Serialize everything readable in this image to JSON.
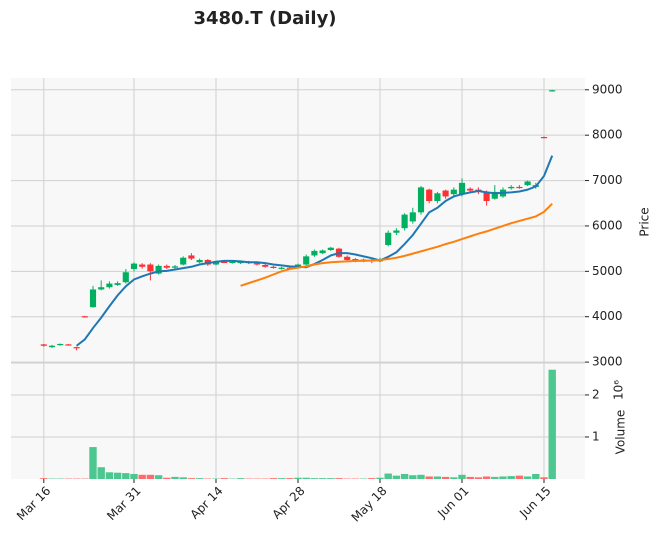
{
  "chart_data": {
    "type": "candlestick",
    "title": "3480.T (Daily)",
    "categories": [
      "Mar 16",
      null,
      null,
      null,
      null,
      null,
      null,
      null,
      null,
      null,
      null,
      "Mar 31",
      null,
      null,
      null,
      null,
      null,
      null,
      null,
      null,
      null,
      "Apr 14",
      null,
      null,
      null,
      null,
      null,
      null,
      null,
      null,
      null,
      "Apr 28",
      null,
      null,
      null,
      null,
      null,
      null,
      null,
      null,
      null,
      "May 18",
      null,
      null,
      null,
      null,
      null,
      null,
      null,
      null,
      null,
      "Jun 01",
      null,
      null,
      null,
      null,
      null,
      null,
      null,
      null,
      null,
      "Jun 15",
      null
    ],
    "open": [
      3390,
      3330,
      3380,
      3390,
      3330,
      4010,
      4210,
      4600,
      4650,
      4700,
      4760,
      5050,
      5150,
      5150,
      4950,
      5120,
      5080,
      5150,
      5350,
      5200,
      5250,
      5150,
      5210,
      5190,
      5180,
      5210,
      5180,
      5140,
      5100,
      5060,
      5080,
      5080,
      5150,
      5350,
      5400,
      5470,
      5500,
      5320,
      5270,
      5230,
      5260,
      5220,
      5580,
      5850,
      5950,
      6100,
      6300,
      6800,
      6550,
      6780,
      6700,
      6700,
      6820,
      6800,
      6750,
      6600,
      6650,
      6830,
      6860,
      6900,
      6860,
      7960,
      8970
    ],
    "high": [
      3400,
      3380,
      3410,
      3400,
      3340,
      4020,
      4680,
      4800,
      4780,
      4780,
      5050,
      5200,
      5180,
      5180,
      5150,
      5150,
      5140,
      5330,
      5400,
      5280,
      5270,
      5230,
      5230,
      5230,
      5240,
      5230,
      5200,
      5160,
      5120,
      5100,
      5100,
      5170,
      5370,
      5480,
      5480,
      5540,
      5520,
      5350,
      5290,
      5280,
      5290,
      5300,
      5900,
      5950,
      6280,
      6400,
      6880,
      6820,
      6750,
      6800,
      6850,
      7050,
      6850,
      6850,
      6780,
      6900,
      6850,
      6900,
      6900,
      7000,
      6950,
      7970,
      9000
    ],
    "low": [
      3340,
      3310,
      3360,
      3370,
      3260,
      3990,
      4200,
      4580,
      4620,
      4680,
      4730,
      5000,
      5060,
      4800,
      4930,
      5050,
      5060,
      5130,
      5250,
      5180,
      5120,
      5130,
      5180,
      5170,
      5160,
      5160,
      5130,
      5080,
      5060,
      5040,
      5050,
      5060,
      5130,
      5320,
      5380,
      5450,
      5300,
      5230,
      5200,
      5200,
      5180,
      5200,
      5550,
      5800,
      5900,
      6050,
      6250,
      6500,
      6500,
      6600,
      6650,
      6650,
      6750,
      6700,
      6450,
      6580,
      6620,
      6800,
      6820,
      6880,
      6820,
      7930,
      8960
    ],
    "close": [
      3360,
      3360,
      3400,
      3380,
      3310,
      4000,
      4600,
      4650,
      4730,
      4740,
      4980,
      5170,
      5100,
      5000,
      5120,
      5080,
      5110,
      5300,
      5280,
      5250,
      5150,
      5210,
      5200,
      5210,
      5220,
      5180,
      5150,
      5100,
      5080,
      5080,
      5070,
      5150,
      5330,
      5450,
      5460,
      5520,
      5320,
      5250,
      5230,
      5260,
      5220,
      5250,
      5850,
      5900,
      6250,
      6300,
      6850,
      6550,
      6720,
      6650,
      6800,
      6950,
      6780,
      6760,
      6550,
      6750,
      6800,
      6860,
      6850,
      6980,
      6900,
      7940,
      8990
    ],
    "up_color": "#00b060",
    "down_color": "#fe3032",
    "moving_averages": [
      {
        "color": "#1f77b4",
        "values": [
          null,
          null,
          null,
          null,
          3360,
          3500,
          3750,
          3980,
          4230,
          4470,
          4670,
          4820,
          4890,
          4950,
          5000,
          5010,
          5040,
          5070,
          5100,
          5150,
          5180,
          5210,
          5230,
          5230,
          5220,
          5200,
          5200,
          5180,
          5150,
          5130,
          5110,
          5100,
          5090,
          5160,
          5250,
          5350,
          5400,
          5400,
          5370,
          5330,
          5290,
          5240,
          5320,
          5420,
          5600,
          5800,
          6050,
          6300,
          6400,
          6550,
          6650,
          6700,
          6740,
          6770,
          6740,
          6720,
          6730,
          6740,
          6760,
          6800,
          6870,
          7100,
          7550
        ]
      },
      {
        "color": "#ff7f0e",
        "values": [
          null,
          null,
          null,
          null,
          null,
          null,
          null,
          null,
          null,
          null,
          null,
          null,
          null,
          null,
          null,
          null,
          null,
          null,
          null,
          null,
          null,
          null,
          null,
          null,
          4680,
          4740,
          4800,
          4860,
          4930,
          5000,
          5050,
          5080,
          5110,
          5150,
          5180,
          5200,
          5210,
          5220,
          5230,
          5230,
          5240,
          5250,
          5270,
          5300,
          5340,
          5390,
          5440,
          5490,
          5540,
          5600,
          5650,
          5710,
          5770,
          5830,
          5880,
          5940,
          6000,
          6060,
          6110,
          6160,
          6210,
          6310,
          6490
        ]
      }
    ],
    "ylabel": "Price",
    "ylim": [
      2980,
      9260
    ],
    "yticks": [
      3000,
      4000,
      5000,
      6000,
      7000,
      8000,
      9000
    ],
    "grid": true,
    "volume": {
      "values": [
        0.02,
        0.01,
        0.01,
        0.01,
        0.01,
        0.01,
        0.76,
        0.28,
        0.16,
        0.15,
        0.14,
        0.12,
        0.1,
        0.1,
        0.09,
        0.03,
        0.05,
        0.04,
        0.02,
        0.02,
        0.01,
        0.01,
        0.02,
        0.01,
        0.02,
        0.01,
        0.01,
        0.01,
        0.02,
        0.02,
        0.02,
        0.03,
        0.03,
        0.02,
        0.02,
        0.02,
        0.02,
        0.01,
        0.01,
        0.01,
        0.02,
        0.03,
        0.13,
        0.08,
        0.12,
        0.09,
        0.1,
        0.06,
        0.06,
        0.05,
        0.04,
        0.1,
        0.05,
        0.04,
        0.06,
        0.05,
        0.06,
        0.07,
        0.08,
        0.06,
        0.12,
        0.04,
        2.6
      ],
      "up_color": "#4dc790",
      "down_color": "#fd6b6c",
      "ylabel": "Volume",
      "scale_label": "10⁶",
      "ylim": [
        0,
        2.76
      ],
      "yticks": [
        1,
        2
      ]
    }
  }
}
